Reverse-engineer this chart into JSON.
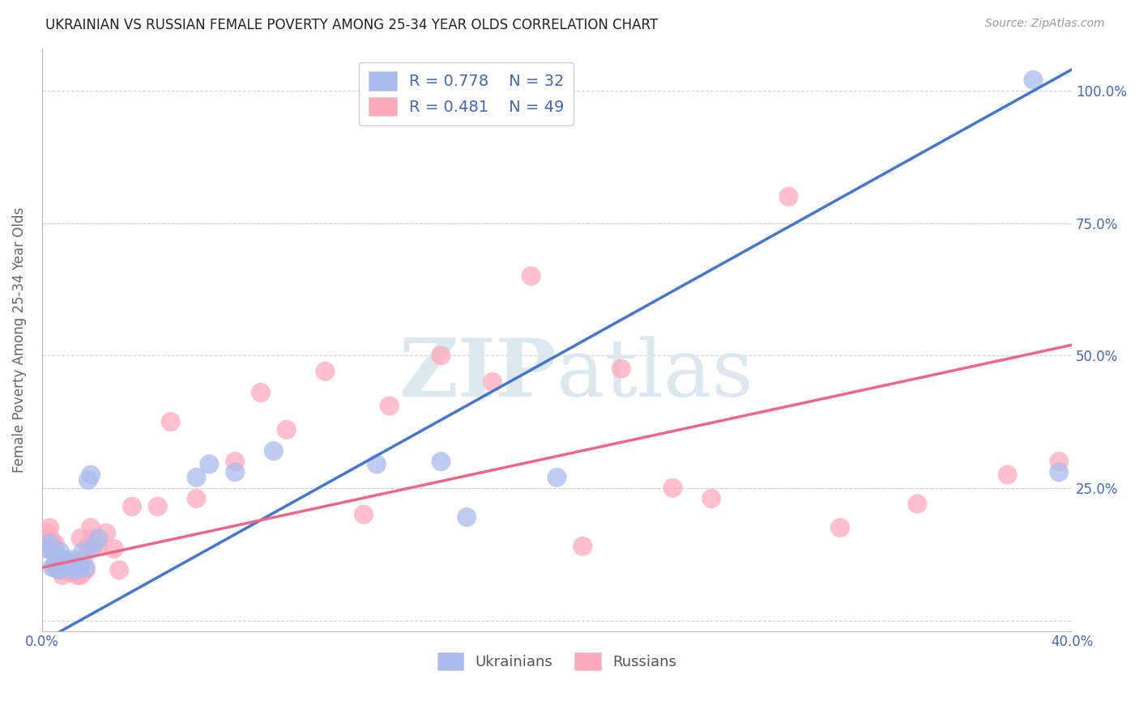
{
  "title": "UKRAINIAN VS RUSSIAN FEMALE POVERTY AMONG 25-34 YEAR OLDS CORRELATION CHART",
  "source": "Source: ZipAtlas.com",
  "ylabel": "Female Poverty Among 25-34 Year Olds",
  "xlim": [
    0.0,
    0.4
  ],
  "ylim": [
    -0.02,
    1.08
  ],
  "x_ticks": [
    0.0,
    0.08,
    0.16,
    0.24,
    0.32,
    0.4
  ],
  "x_tick_labels": [
    "0.0%",
    "",
    "",
    "",
    "",
    "40.0%"
  ],
  "y_ticks": [
    0.0,
    0.25,
    0.5,
    0.75,
    1.0
  ],
  "y_tick_labels_right": [
    "",
    "25.0%",
    "50.0%",
    "75.0%",
    "100.0%"
  ],
  "background_color": "#ffffff",
  "grid_color": "#d0d0d0",
  "ukrainian_color": "#aabbee",
  "russian_color": "#ffaabb",
  "ukrainian_line_color": "#4477cc",
  "russian_line_color": "#ee6688",
  "title_color": "#222222",
  "axis_label_color": "#4466bb",
  "ylabel_color": "#666666",
  "watermark_color": "#dce8f0",
  "r_ukrainian": 0.778,
  "n_ukrainian": 32,
  "r_russian": 0.481,
  "n_russian": 49,
  "ukr_line_x0": 0.0,
  "ukr_line_y0": -0.04,
  "ukr_line_x1": 0.4,
  "ukr_line_y1": 1.04,
  "rus_line_x0": 0.0,
  "rus_line_y0": 0.1,
  "rus_line_x1": 0.4,
  "rus_line_y1": 0.52,
  "ukrainian_x": [
    0.002,
    0.003,
    0.004,
    0.005,
    0.005,
    0.006,
    0.007,
    0.007,
    0.008,
    0.009,
    0.01,
    0.011,
    0.012,
    0.013,
    0.014,
    0.015,
    0.016,
    0.017,
    0.018,
    0.019,
    0.02,
    0.022,
    0.06,
    0.065,
    0.075,
    0.09,
    0.13,
    0.155,
    0.165,
    0.2,
    0.385,
    0.395
  ],
  "ukrainian_y": [
    0.135,
    0.145,
    0.1,
    0.1,
    0.125,
    0.11,
    0.095,
    0.13,
    0.115,
    0.1,
    0.1,
    0.11,
    0.115,
    0.095,
    0.1,
    0.105,
    0.13,
    0.1,
    0.265,
    0.275,
    0.14,
    0.155,
    0.27,
    0.295,
    0.28,
    0.32,
    0.295,
    0.3,
    0.195,
    0.27,
    1.02,
    0.28
  ],
  "russian_x": [
    0.002,
    0.003,
    0.003,
    0.004,
    0.005,
    0.005,
    0.006,
    0.007,
    0.008,
    0.008,
    0.009,
    0.01,
    0.011,
    0.012,
    0.013,
    0.014,
    0.015,
    0.015,
    0.016,
    0.017,
    0.018,
    0.019,
    0.02,
    0.022,
    0.025,
    0.028,
    0.03,
    0.035,
    0.045,
    0.05,
    0.06,
    0.075,
    0.085,
    0.095,
    0.11,
    0.125,
    0.135,
    0.155,
    0.175,
    0.19,
    0.21,
    0.225,
    0.245,
    0.26,
    0.29,
    0.31,
    0.34,
    0.375,
    0.395
  ],
  "russian_y": [
    0.165,
    0.135,
    0.175,
    0.15,
    0.105,
    0.145,
    0.105,
    0.095,
    0.085,
    0.11,
    0.115,
    0.1,
    0.09,
    0.09,
    0.095,
    0.085,
    0.085,
    0.155,
    0.115,
    0.095,
    0.14,
    0.175,
    0.155,
    0.14,
    0.165,
    0.135,
    0.095,
    0.215,
    0.215,
    0.375,
    0.23,
    0.3,
    0.43,
    0.36,
    0.47,
    0.2,
    0.405,
    0.5,
    0.45,
    0.65,
    0.14,
    0.475,
    0.25,
    0.23,
    0.8,
    0.175,
    0.22,
    0.275,
    0.3
  ]
}
